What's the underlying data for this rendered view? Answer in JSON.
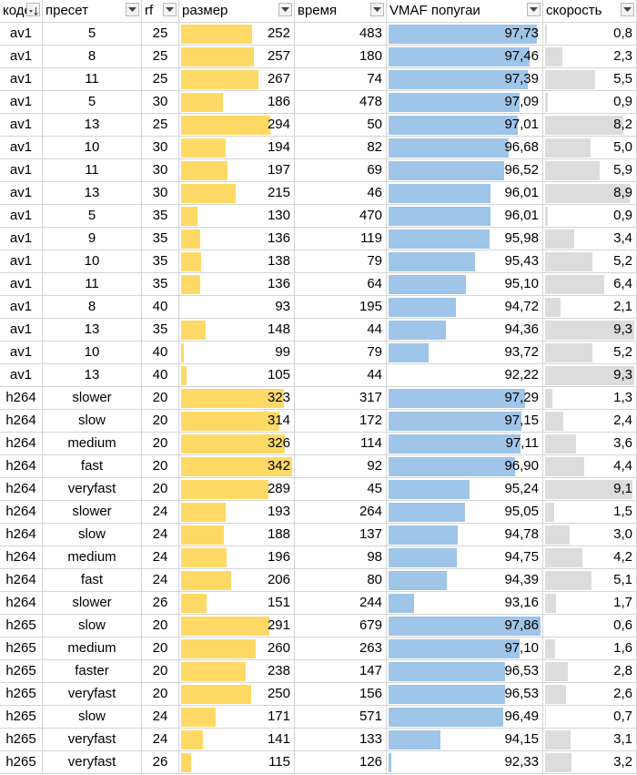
{
  "headers": [
    {
      "label": "кодек",
      "filter": "sorted"
    },
    {
      "label": "пресет",
      "filter": "dropdown"
    },
    {
      "label": "rf",
      "filter": "dropdown"
    },
    {
      "label": "размер",
      "filter": "dropdown"
    },
    {
      "label": "время",
      "filter": "dropdown"
    },
    {
      "label": "VMAF попугаи",
      "filter": "dropdown"
    },
    {
      "label": "скорость",
      "filter": "dropdown"
    }
  ],
  "databar_colors": {
    "size": "#ffd966",
    "vmaf": "#9fc5e8",
    "speed": "#dcdcdc"
  },
  "rows": [
    {
      "codec": "av1",
      "preset": "5",
      "rf": "25",
      "size": "252",
      "time": "483",
      "vmaf": "97,73",
      "speed": "0,8"
    },
    {
      "codec": "av1",
      "preset": "8",
      "rf": "25",
      "size": "257",
      "time": "180",
      "vmaf": "97,46",
      "speed": "2,3"
    },
    {
      "codec": "av1",
      "preset": "11",
      "rf": "25",
      "size": "267",
      "time": "74",
      "vmaf": "97,39",
      "speed": "5,5"
    },
    {
      "codec": "av1",
      "preset": "5",
      "rf": "30",
      "size": "186",
      "time": "478",
      "vmaf": "97,09",
      "speed": "0,9"
    },
    {
      "codec": "av1",
      "preset": "13",
      "rf": "25",
      "size": "294",
      "time": "50",
      "vmaf": "97,01",
      "speed": "8,2"
    },
    {
      "codec": "av1",
      "preset": "10",
      "rf": "30",
      "size": "194",
      "time": "82",
      "vmaf": "96,68",
      "speed": "5,0"
    },
    {
      "codec": "av1",
      "preset": "11",
      "rf": "30",
      "size": "197",
      "time": "69",
      "vmaf": "96,52",
      "speed": "5,9"
    },
    {
      "codec": "av1",
      "preset": "13",
      "rf": "30",
      "size": "215",
      "time": "46",
      "vmaf": "96,01",
      "speed": "8,9"
    },
    {
      "codec": "av1",
      "preset": "5",
      "rf": "35",
      "size": "130",
      "time": "470",
      "vmaf": "96,01",
      "speed": "0,9"
    },
    {
      "codec": "av1",
      "preset": "9",
      "rf": "35",
      "size": "136",
      "time": "119",
      "vmaf": "95,98",
      "speed": "3,4"
    },
    {
      "codec": "av1",
      "preset": "10",
      "rf": "35",
      "size": "138",
      "time": "79",
      "vmaf": "95,43",
      "speed": "5,2"
    },
    {
      "codec": "av1",
      "preset": "11",
      "rf": "35",
      "size": "136",
      "time": "64",
      "vmaf": "95,10",
      "speed": "6,4"
    },
    {
      "codec": "av1",
      "preset": "8",
      "rf": "40",
      "size": "93",
      "time": "195",
      "vmaf": "94,72",
      "speed": "2,1"
    },
    {
      "codec": "av1",
      "preset": "13",
      "rf": "35",
      "size": "148",
      "time": "44",
      "vmaf": "94,36",
      "speed": "9,3"
    },
    {
      "codec": "av1",
      "preset": "10",
      "rf": "40",
      "size": "99",
      "time": "79",
      "vmaf": "93,72",
      "speed": "5,2"
    },
    {
      "codec": "av1",
      "preset": "13",
      "rf": "40",
      "size": "105",
      "time": "44",
      "vmaf": "92,22",
      "speed": "9,3"
    },
    {
      "codec": "h264",
      "preset": "slower",
      "rf": "20",
      "size": "323",
      "time": "317",
      "vmaf": "97,29",
      "speed": "1,3"
    },
    {
      "codec": "h264",
      "preset": "slow",
      "rf": "20",
      "size": "314",
      "time": "172",
      "vmaf": "97,15",
      "speed": "2,4"
    },
    {
      "codec": "h264",
      "preset": "medium",
      "rf": "20",
      "size": "326",
      "time": "114",
      "vmaf": "97,11",
      "speed": "3,6"
    },
    {
      "codec": "h264",
      "preset": "fast",
      "rf": "20",
      "size": "342",
      "time": "92",
      "vmaf": "96,90",
      "speed": "4,4"
    },
    {
      "codec": "h264",
      "preset": "veryfast",
      "rf": "20",
      "size": "289",
      "time": "45",
      "vmaf": "95,24",
      "speed": "9,1"
    },
    {
      "codec": "h264",
      "preset": "slower",
      "rf": "24",
      "size": "193",
      "time": "264",
      "vmaf": "95,05",
      "speed": "1,5"
    },
    {
      "codec": "h264",
      "preset": "slow",
      "rf": "24",
      "size": "188",
      "time": "137",
      "vmaf": "94,78",
      "speed": "3,0"
    },
    {
      "codec": "h264",
      "preset": "medium",
      "rf": "24",
      "size": "196",
      "time": "98",
      "vmaf": "94,75",
      "speed": "4,2"
    },
    {
      "codec": "h264",
      "preset": "fast",
      "rf": "24",
      "size": "206",
      "time": "80",
      "vmaf": "94,39",
      "speed": "5,1"
    },
    {
      "codec": "h264",
      "preset": "slower",
      "rf": "26",
      "size": "151",
      "time": "244",
      "vmaf": "93,16",
      "speed": "1,7"
    },
    {
      "codec": "h265",
      "preset": "slow",
      "rf": "20",
      "size": "291",
      "time": "679",
      "vmaf": "97,86",
      "speed": "0,6"
    },
    {
      "codec": "h265",
      "preset": "medium",
      "rf": "20",
      "size": "260",
      "time": "263",
      "vmaf": "97,10",
      "speed": "1,6"
    },
    {
      "codec": "h265",
      "preset": "faster",
      "rf": "20",
      "size": "238",
      "time": "147",
      "vmaf": "96,53",
      "speed": "2,8"
    },
    {
      "codec": "h265",
      "preset": "veryfast",
      "rf": "20",
      "size": "250",
      "time": "156",
      "vmaf": "96,53",
      "speed": "2,6"
    },
    {
      "codec": "h265",
      "preset": "slow",
      "rf": "24",
      "size": "171",
      "time": "571",
      "vmaf": "96,49",
      "speed": "0,7"
    },
    {
      "codec": "h265",
      "preset": "veryfast",
      "rf": "24",
      "size": "141",
      "time": "133",
      "vmaf": "94,15",
      "speed": "3,1"
    },
    {
      "codec": "h265",
      "preset": "veryfast",
      "rf": "26",
      "size": "115",
      "time": "126",
      "vmaf": "92,33",
      "speed": "3,2"
    }
  ]
}
